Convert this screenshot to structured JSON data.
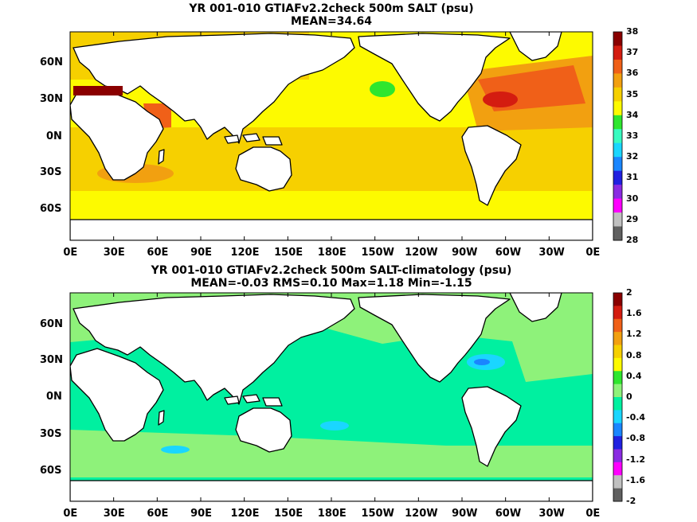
{
  "panels": [
    {
      "title1": "YR 001-010 GTIAFv2.2check 500m SALT (psu)",
      "title2": "MEAN=34.64",
      "colorbar": {
        "labels": [
          "38",
          "37",
          "36",
          "35",
          "34",
          "33",
          "32",
          "31",
          "30",
          "29",
          "28"
        ],
        "colors": [
          "#8a0000",
          "#d41c10",
          "#f06018",
          "#f2a010",
          "#f6d000",
          "#fdfa00",
          "#2ee62e",
          "#38fbc0",
          "#1ad6ff",
          "#1a86ff",
          "#2020e0",
          "#8a2be2",
          "#ff00ff",
          "#c0c0c0",
          "#606060"
        ]
      }
    },
    {
      "title1": "YR 001-010 GTIAFv2.2check 500m SALT-climatology (psu)",
      "title2": "MEAN=-0.03   RMS=0.10   Max=1.18   Min=-1.15",
      "colorbar": {
        "labels": [
          "2",
          "1.6",
          "1.2",
          "0.8",
          "0.4",
          "0",
          "-0.4",
          "-0.8",
          "-1.2",
          "-1.6",
          "-2"
        ],
        "colors": [
          "#8a0000",
          "#d41c10",
          "#f06018",
          "#f2a010",
          "#f6d000",
          "#fdfa00",
          "#2ee62e",
          "#8ef27a",
          "#00f0a0",
          "#1ad6ff",
          "#1a86ff",
          "#2020e0",
          "#8a2be2",
          "#ff00ff",
          "#c0c0c0",
          "#606060"
        ]
      }
    }
  ],
  "axes": {
    "lat_labels": [
      "60N",
      "30N",
      "0N",
      "30S",
      "60S"
    ],
    "lon_labels": [
      "0E",
      "30E",
      "60E",
      "90E",
      "120E",
      "150E",
      "180E",
      "150W",
      "120W",
      "90W",
      "60W",
      "30W",
      "0E"
    ]
  }
}
